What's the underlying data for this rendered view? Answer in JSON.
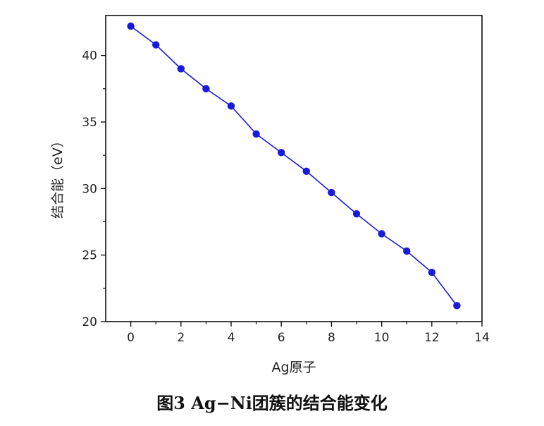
{
  "caption": "图3   Ag−Ni团簇的结合能变化",
  "chart_data": {
    "type": "line",
    "title": "",
    "xlabel": "Ag原子",
    "ylabel": "结合能（eV）",
    "xlim": [
      -1,
      14
    ],
    "ylim": [
      20,
      43
    ],
    "xticks": [
      0,
      2,
      4,
      6,
      8,
      10,
      12,
      14
    ],
    "yticks": [
      20,
      25,
      30,
      35,
      40
    ],
    "grid": false,
    "series": [
      {
        "color": "#1a1adb",
        "marker": "circle",
        "x": [
          0,
          1,
          2,
          3,
          4,
          5,
          6,
          7,
          8,
          9,
          10,
          11,
          12,
          13
        ],
        "y": [
          42.2,
          40.8,
          39.0,
          37.5,
          36.2,
          34.1,
          32.7,
          31.3,
          29.7,
          28.1,
          26.6,
          25.3,
          23.7,
          21.2
        ]
      }
    ]
  }
}
